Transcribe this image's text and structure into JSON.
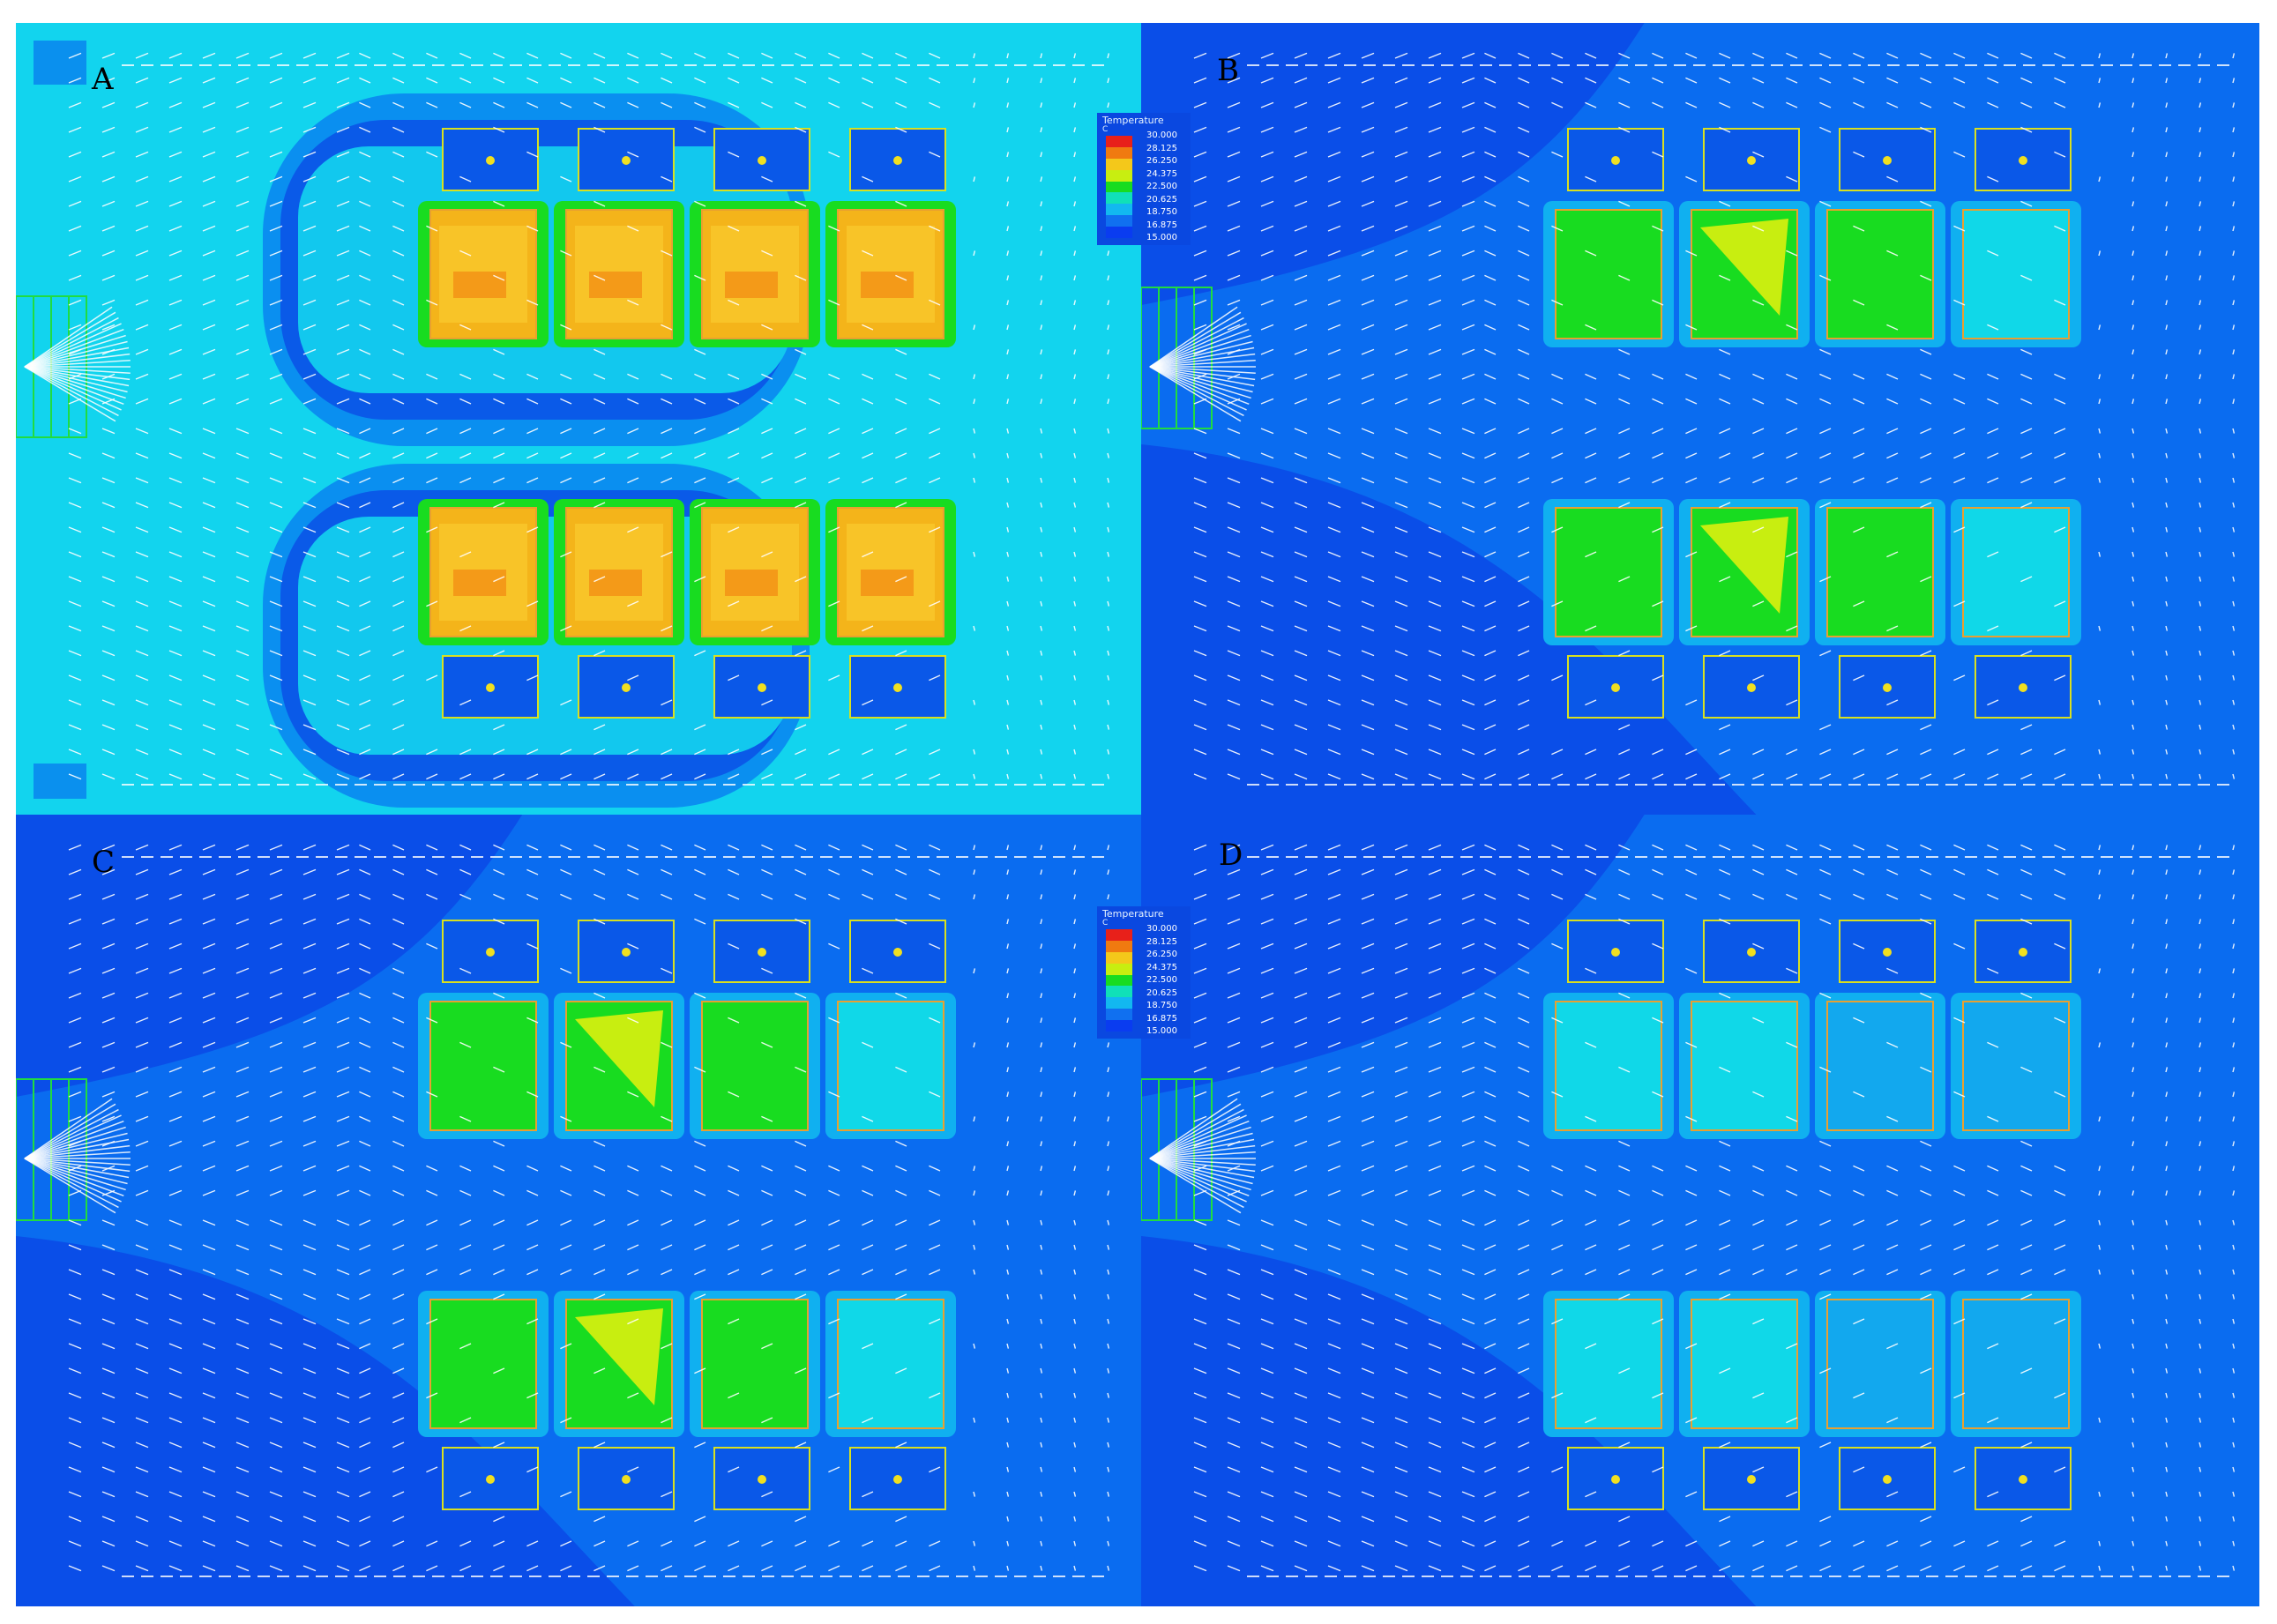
{
  "panels": [
    {
      "id": "A",
      "label": "A",
      "hot_fraction": 1.0,
      "ambient": "#12d4ee",
      "cool_side": "#0a90ee"
    },
    {
      "id": "B",
      "label": "B",
      "hot_fraction": 0.6,
      "ambient": "#0a6cf0",
      "cool_side": "#0a4ee8"
    },
    {
      "id": "C",
      "label": "C",
      "hot_fraction": 0.6,
      "ambient": "#0a6cf0",
      "cool_side": "#0a4ee8"
    },
    {
      "id": "D",
      "label": "D",
      "hot_fraction": 0.3,
      "ambient": "#0a6cf0",
      "cool_side": "#0a4ee8"
    }
  ],
  "legend": {
    "title": "Temperature",
    "unit": "C",
    "ticks_top": [
      "30.000",
      "28.125",
      "26.250",
      "24.375",
      "22.500",
      "20.625",
      "18.750",
      "16.875",
      "15.000"
    ],
    "ticks_bottom": [
      "30.000",
      "28.125",
      "26.250",
      "24.375",
      "22.500",
      "20.625",
      "18.750",
      "16.875",
      "15.000"
    ],
    "colors": [
      "#e8201a",
      "#f07a10",
      "#f4c81a",
      "#c8ee10",
      "#18dc20",
      "#10e0b8",
      "#12b8f0",
      "#1070f0",
      "#0a3cf0"
    ]
  },
  "colors": {
    "rack_hot": "#f4b41a",
    "rack_warm": "#c8ee10",
    "rack_green": "#18dc20",
    "rack_cool": "#10d8e8",
    "rack_outline": "#e8a030",
    "unit_outline": "#d8e020",
    "unit_fill": "#0a58e8",
    "vector": "#ffffff",
    "inlet_grid": "#20dc40"
  }
}
